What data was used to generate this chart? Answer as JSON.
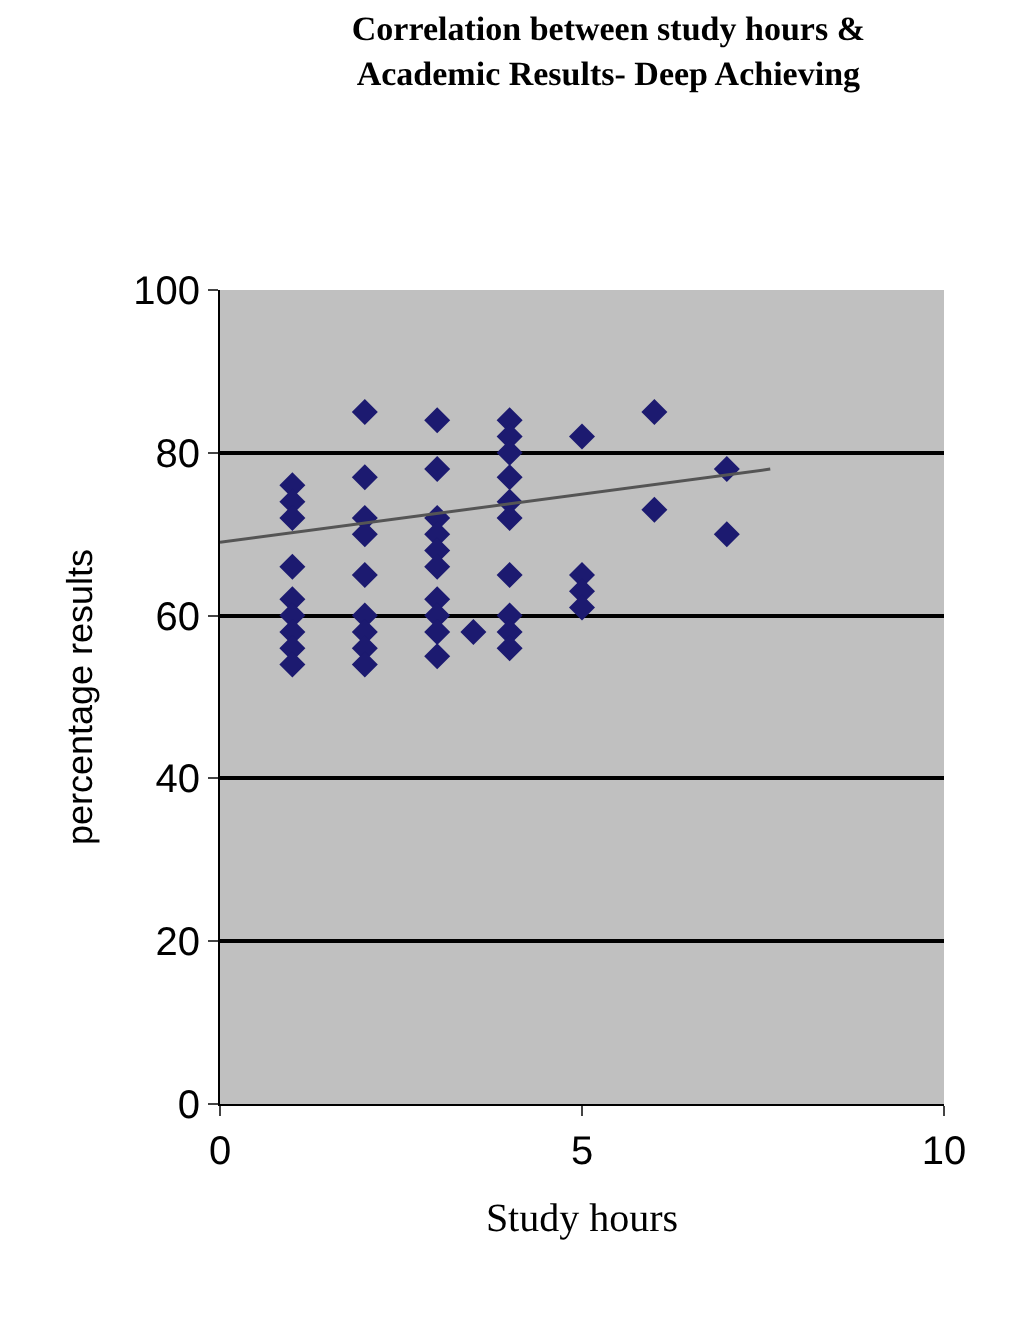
{
  "chart_data": {
    "type": "scatter",
    "title": "Correlation between study hours &\nAcademic Results- Deep Achieving",
    "xlabel": "Study hours",
    "ylabel": "percentage results",
    "xlim": [
      0,
      10
    ],
    "xticks": [
      0,
      5,
      10
    ],
    "ylim": [
      0,
      100
    ],
    "yticks": [
      0,
      20,
      40,
      60,
      80,
      100
    ],
    "grid": "y",
    "series": [
      {
        "marker": "diamond",
        "color": "#1c1a70",
        "x": [
          1,
          1,
          1,
          1,
          1,
          1,
          1,
          1,
          1,
          2,
          2,
          2,
          2,
          2,
          2,
          2,
          2,
          2,
          3,
          3,
          3,
          3,
          3,
          3,
          3,
          3,
          3,
          3,
          3.5,
          4,
          4,
          4,
          4,
          4,
          4,
          4,
          4,
          4,
          4,
          5,
          5,
          5,
          5,
          6,
          6,
          7,
          7
        ],
        "values": [
          76,
          74,
          72,
          66,
          62,
          60,
          58,
          56,
          54,
          85,
          77,
          72,
          70,
          65,
          60,
          58,
          56,
          54,
          84,
          78,
          72,
          70,
          68,
          66,
          62,
          60,
          58,
          55,
          58,
          84,
          82,
          80,
          77,
          74,
          72,
          65,
          60,
          58,
          56,
          82,
          65,
          63,
          61,
          85,
          73,
          78,
          70
        ]
      },
      {
        "type": "line",
        "color": "#555555",
        "x": [
          0,
          7.6
        ],
        "values": [
          69,
          78
        ]
      }
    ]
  }
}
